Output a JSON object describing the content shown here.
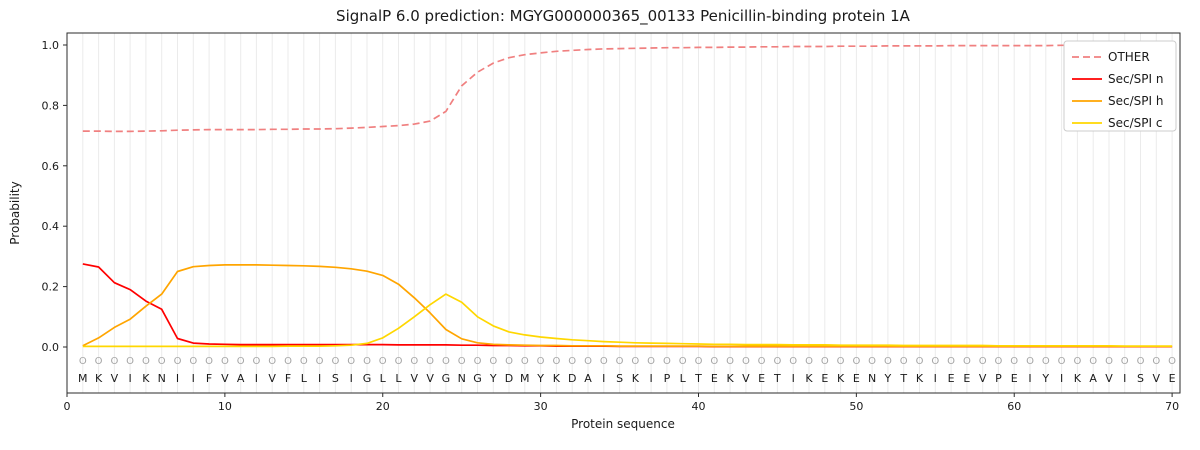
{
  "chart_data": {
    "type": "line",
    "title": "SignalP 6.0 prediction: MGYG000000365_00133 Penicillin-binding protein 1A",
    "xlabel": "Protein sequence",
    "ylabel": "Probability",
    "xlim": [
      0,
      70.5
    ],
    "ylim": [
      -0.15,
      1.04
    ],
    "xticks": [
      0,
      10,
      20,
      30,
      40,
      50,
      60,
      70
    ],
    "yticks": [
      0.0,
      0.2,
      0.4,
      0.6,
      0.8,
      1.0
    ],
    "grid": "vertical-line-per-residue",
    "grid_color": "#ebebeb",
    "legend_position": "top-right",
    "sequence": "MKVIKNIIFVAIVFLISIGLLVVGNGYDMYKDAISKIPLTEKVETIKEKENYTKIEEVPEIYIKAVISVE",
    "residue_marker": "O",
    "x": [
      1,
      2,
      3,
      4,
      5,
      6,
      7,
      8,
      9,
      10,
      11,
      12,
      13,
      14,
      15,
      16,
      17,
      18,
      19,
      20,
      21,
      22,
      23,
      24,
      25,
      26,
      27,
      28,
      29,
      30,
      31,
      32,
      33,
      34,
      35,
      36,
      37,
      38,
      39,
      40,
      41,
      42,
      43,
      44,
      45,
      46,
      47,
      48,
      49,
      50,
      51,
      52,
      53,
      54,
      55,
      56,
      57,
      58,
      59,
      60,
      61,
      62,
      63,
      64,
      65,
      66,
      67,
      68,
      69,
      70
    ],
    "series": [
      {
        "name": "OTHER",
        "color": "#f08080",
        "dash": true,
        "values": [
          0.715,
          0.715,
          0.714,
          0.714,
          0.715,
          0.716,
          0.718,
          0.719,
          0.72,
          0.72,
          0.72,
          0.72,
          0.721,
          0.721,
          0.722,
          0.722,
          0.723,
          0.725,
          0.727,
          0.73,
          0.733,
          0.738,
          0.748,
          0.78,
          0.865,
          0.91,
          0.94,
          0.958,
          0.968,
          0.974,
          0.979,
          0.982,
          0.985,
          0.987,
          0.988,
          0.989,
          0.99,
          0.991,
          0.991,
          0.992,
          0.992,
          0.993,
          0.993,
          0.994,
          0.994,
          0.995,
          0.995,
          0.995,
          0.996,
          0.996,
          0.996,
          0.997,
          0.997,
          0.997,
          0.997,
          0.998,
          0.998,
          0.998,
          0.998,
          0.998,
          0.998,
          0.998,
          0.999,
          0.999,
          0.999,
          0.999,
          0.999,
          0.999,
          0.999,
          0.999
        ]
      },
      {
        "name": "Sec/SPI n",
        "color": "#ff0000",
        "dash": false,
        "values": [
          0.275,
          0.265,
          0.213,
          0.19,
          0.152,
          0.125,
          0.028,
          0.013,
          0.01,
          0.009,
          0.008,
          0.008,
          0.008,
          0.008,
          0.008,
          0.008,
          0.008,
          0.008,
          0.008,
          0.008,
          0.007,
          0.007,
          0.007,
          0.007,
          0.006,
          0.006,
          0.005,
          0.005,
          0.004,
          0.004,
          0.003,
          0.003,
          0.003,
          0.003,
          0.002,
          0.002,
          0.002,
          0.002,
          0.002,
          0.002,
          0.001,
          0.001,
          0.001,
          0.001,
          0.001,
          0.001,
          0.001,
          0.001,
          0.001,
          0.001,
          0.001,
          0.001,
          0.001,
          0.001,
          0.001,
          0.001,
          0.001,
          0.001,
          0.001,
          0.001,
          0.001,
          0.001,
          0.001,
          0.001,
          0.001,
          0.001,
          0.001,
          0.001,
          0.001,
          0.001
        ]
      },
      {
        "name": "Sec/SPI h",
        "color": "#ffa500",
        "dash": false,
        "values": [
          0.004,
          0.03,
          0.065,
          0.092,
          0.135,
          0.175,
          0.25,
          0.266,
          0.27,
          0.272,
          0.272,
          0.272,
          0.271,
          0.27,
          0.269,
          0.267,
          0.264,
          0.259,
          0.251,
          0.237,
          0.208,
          0.163,
          0.113,
          0.058,
          0.027,
          0.014,
          0.009,
          0.007,
          0.006,
          0.005,
          0.005,
          0.004,
          0.004,
          0.004,
          0.003,
          0.003,
          0.003,
          0.003,
          0.003,
          0.003,
          0.002,
          0.002,
          0.002,
          0.002,
          0.002,
          0.002,
          0.002,
          0.002,
          0.002,
          0.002,
          0.002,
          0.002,
          0.002,
          0.002,
          0.002,
          0.002,
          0.002,
          0.002,
          0.002,
          0.002,
          0.002,
          0.002,
          0.002,
          0.002,
          0.002,
          0.002,
          0.002,
          0.002,
          0.002,
          0.002
        ]
      },
      {
        "name": "Sec/SPI c",
        "color": "#ffd700",
        "dash": false,
        "values": [
          0.002,
          0.002,
          0.002,
          0.002,
          0.002,
          0.002,
          0.002,
          0.002,
          0.002,
          0.002,
          0.002,
          0.002,
          0.002,
          0.003,
          0.003,
          0.003,
          0.004,
          0.006,
          0.012,
          0.03,
          0.062,
          0.1,
          0.14,
          0.175,
          0.148,
          0.1,
          0.07,
          0.05,
          0.04,
          0.033,
          0.028,
          0.024,
          0.021,
          0.018,
          0.016,
          0.014,
          0.013,
          0.012,
          0.011,
          0.01,
          0.009,
          0.009,
          0.008,
          0.008,
          0.008,
          0.007,
          0.007,
          0.007,
          0.006,
          0.006,
          0.006,
          0.006,
          0.005,
          0.005,
          0.005,
          0.005,
          0.005,
          0.005,
          0.004,
          0.004,
          0.004,
          0.004,
          0.004,
          0.004,
          0.004,
          0.004,
          0.003,
          0.003,
          0.003,
          0.003
        ]
      }
    ]
  }
}
